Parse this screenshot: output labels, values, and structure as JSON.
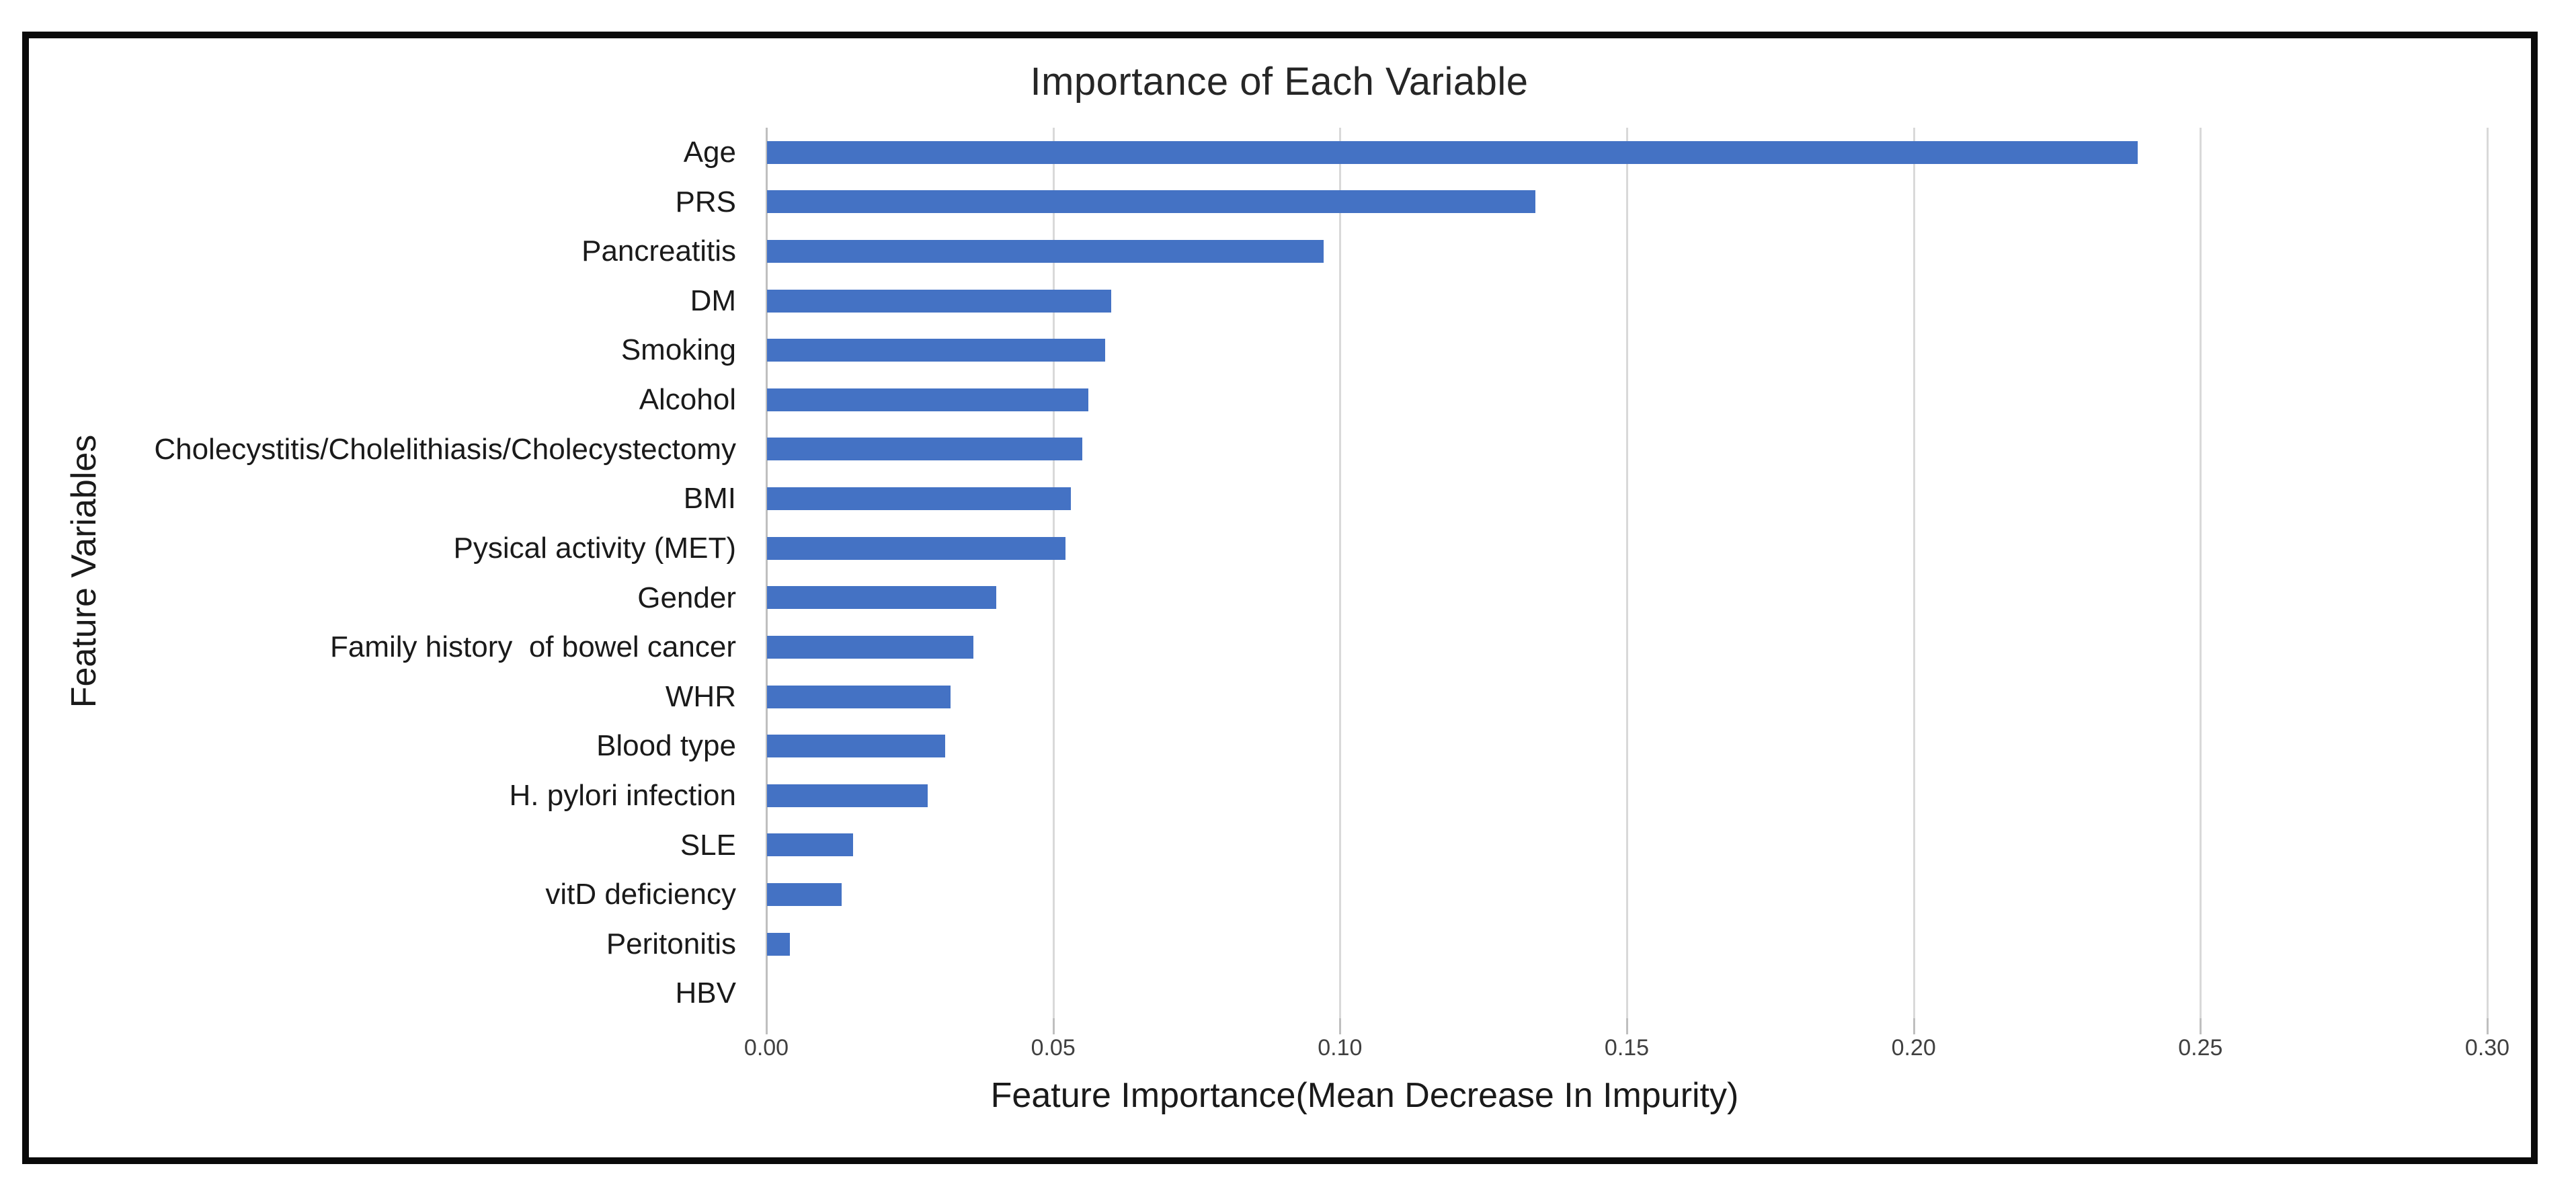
{
  "chart_data": {
    "type": "bar",
    "orientation": "horizontal",
    "title": "Importance of Each Variable",
    "xlabel": "Feature Importance(Mean Decrease In Impurity)",
    "ylabel": "Feature Variables",
    "categories": [
      "Age",
      "PRS",
      "Pancreatitis",
      "DM",
      "Smoking",
      "Alcohol",
      "Cholecystitis/Cholelithiasis/Cholecystectomy",
      "BMI",
      "Pysical activity (MET)",
      "Gender",
      "Family history  of bowel cancer",
      "WHR",
      "Blood type",
      "H. pylori infection",
      "SLE",
      "vitD deficiency",
      "Peritonitis",
      "HBV"
    ],
    "values": [
      0.239,
      0.134,
      0.097,
      0.06,
      0.059,
      0.056,
      0.055,
      0.053,
      0.052,
      0.04,
      0.036,
      0.032,
      0.031,
      0.028,
      0.015,
      0.013,
      0.004,
      0.0
    ],
    "xlim": [
      0,
      0.3
    ],
    "xtick_step": 0.05,
    "xtick_labels": [
      "0.00",
      "0.05",
      "0.10",
      "0.15",
      "0.20",
      "0.25",
      "0.30"
    ],
    "grid": true,
    "legend": false,
    "bar_color": "#4472c4",
    "gridline_color": "#d9d9d9",
    "axis_line_color": "#bfbfbf",
    "frame_border_color": "#0a0a0a"
  }
}
